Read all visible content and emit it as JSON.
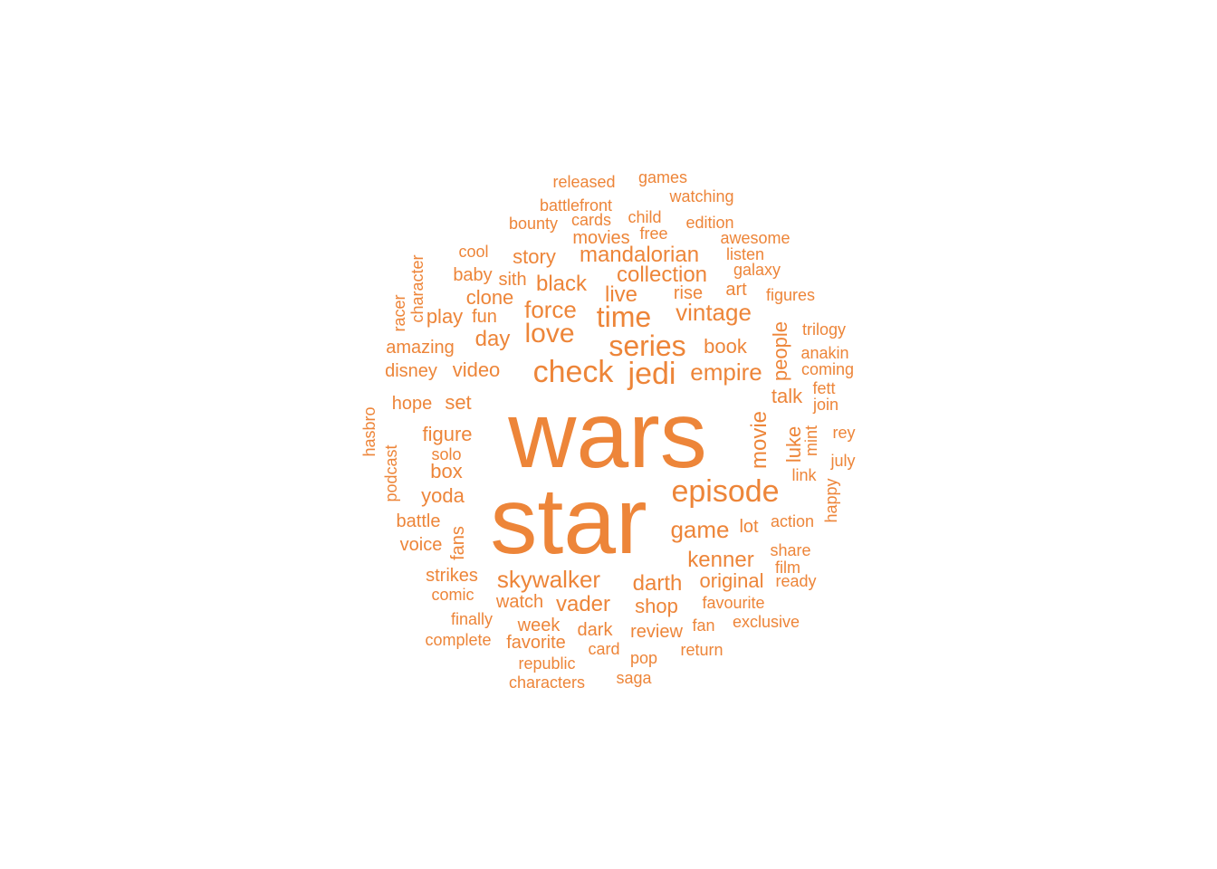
{
  "color": "#ED8539",
  "words": [
    "wars",
    "star",
    "episode",
    "check",
    "jedi",
    "series",
    "time",
    "love",
    "skywalker",
    "vintage",
    "empire",
    "force",
    "mandalorian",
    "collection",
    "game",
    "movie",
    "darth",
    "kenner",
    "black",
    "live",
    "figure",
    "vader",
    "video",
    "story",
    "shop",
    "original",
    "day",
    "clone",
    "yoda",
    "box",
    "book",
    "set",
    "people",
    "talk",
    "luke",
    "play",
    "amazing",
    "disney",
    "hope",
    "watch",
    "week",
    "favorite",
    "lot",
    "dark",
    "review",
    "rise",
    "art",
    "strikes",
    "fans",
    "battle",
    "voice",
    "podcast",
    "hasbro",
    "racer",
    "character",
    "baby",
    "sith",
    "fun",
    "cool",
    "released",
    "games",
    "watching",
    "battlefront",
    "bounty",
    "cards",
    "child",
    "edition",
    "movies",
    "free",
    "awesome",
    "listen",
    "galaxy",
    "figures",
    "trilogy",
    "anakin",
    "coming",
    "fett",
    "join",
    "mint",
    "rey",
    "july",
    "link",
    "happy",
    "action",
    "share",
    "film",
    "ready",
    "favourite",
    "exclusive",
    "fan",
    "return",
    "card",
    "pop",
    "saga",
    "republic",
    "characters",
    "complete",
    "finally",
    "comic",
    "solo"
  ]
}
